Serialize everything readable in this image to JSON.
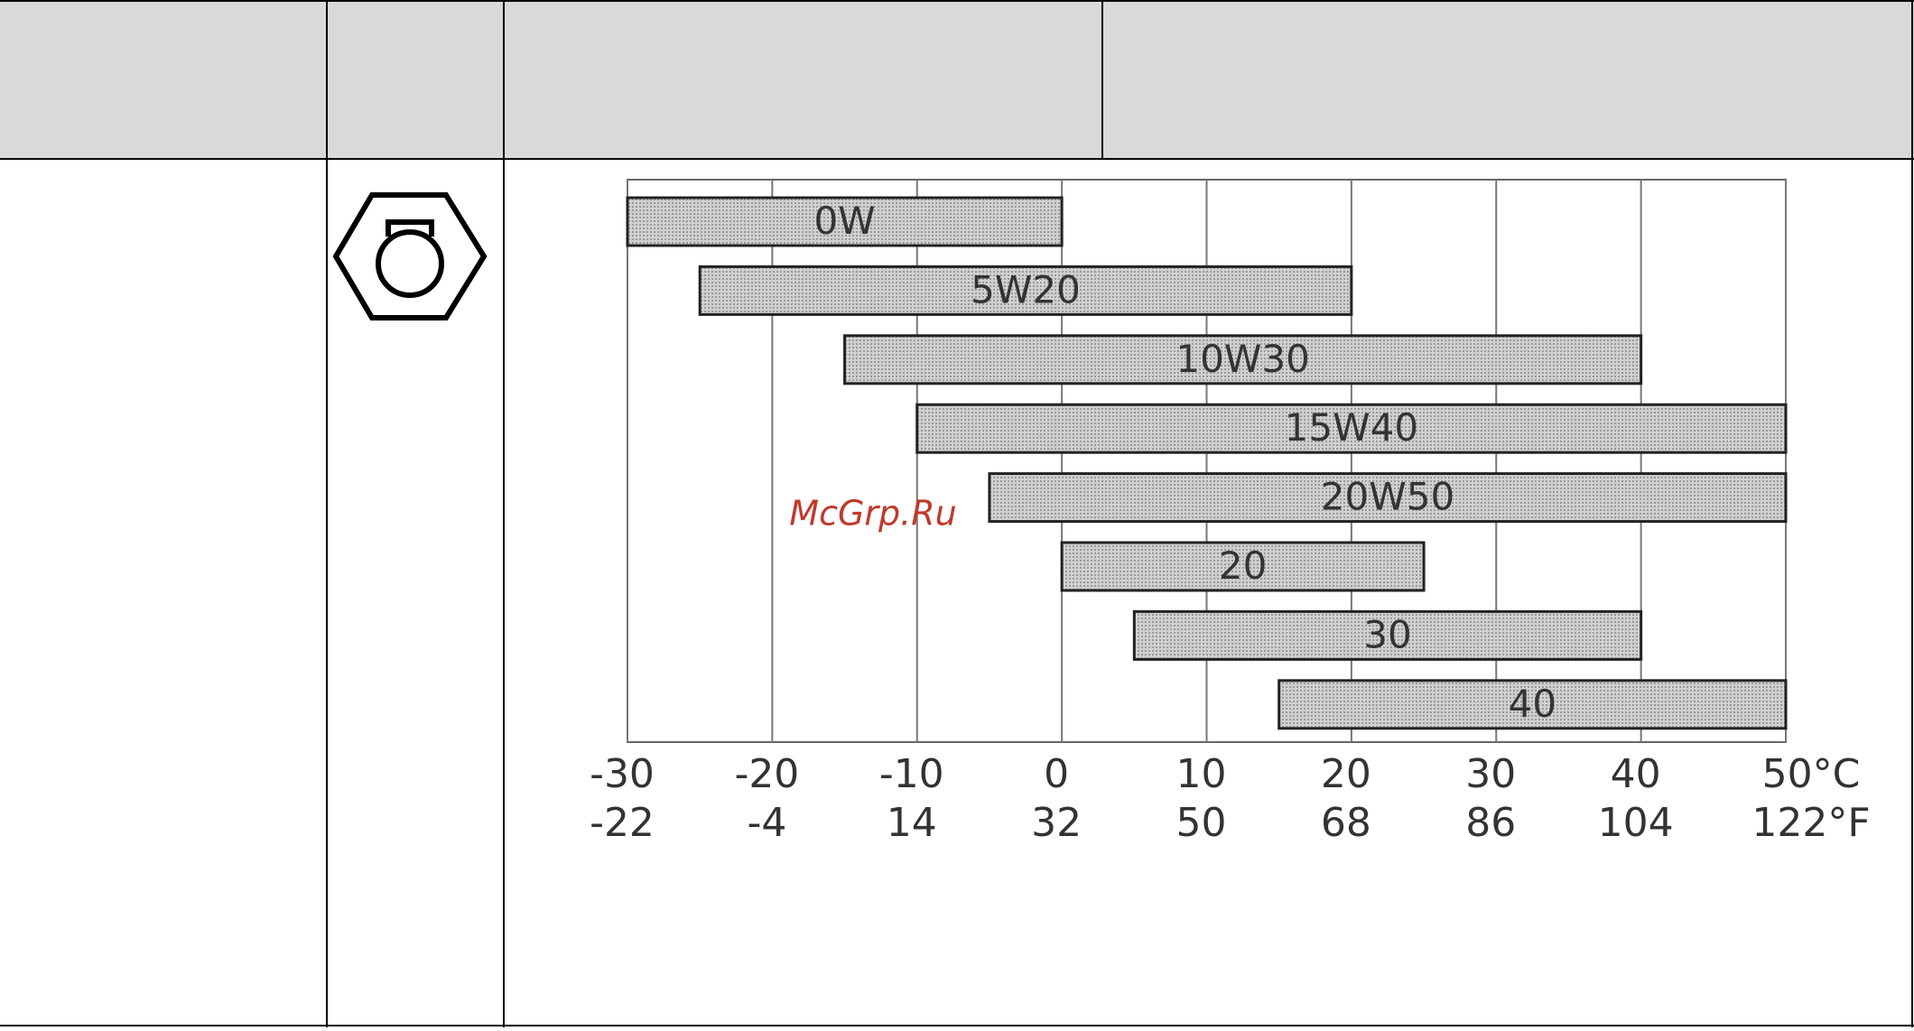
{
  "chart_data": {
    "type": "range-bar",
    "categories": [
      "0W",
      "5W20",
      "10W30",
      "15W40",
      "20W50",
      "20",
      "30",
      "40"
    ],
    "values": [
      [
        -30,
        0
      ],
      [
        -25,
        20
      ],
      [
        -15,
        40
      ],
      [
        -10,
        50
      ],
      [
        -5,
        50
      ],
      [
        0,
        25
      ],
      [
        5,
        40
      ],
      [
        15,
        50
      ]
    ],
    "color": "#c4c4c4",
    "xlim": [
      -30,
      50
    ],
    "xticks": [
      -30,
      -20,
      -10,
      0,
      10,
      20,
      30,
      40,
      {
        "value": 50,
        "label": "50°C"
      }
    ],
    "x2lim": [
      -22,
      122
    ],
    "x2ticks": [
      -22,
      -4,
      14,
      32,
      50,
      68,
      86,
      104,
      {
        "value": 122,
        "label": "122°F"
      }
    ],
    "grid": true
  },
  "watermark": "McGrp.Ru"
}
